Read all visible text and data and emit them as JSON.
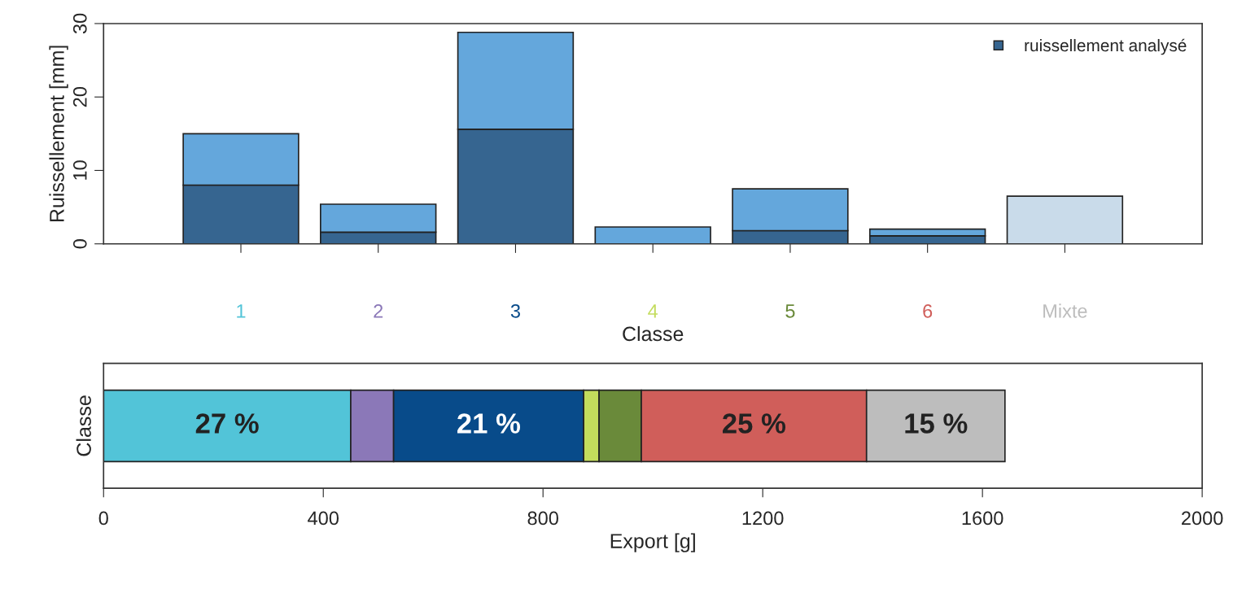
{
  "chart_data": [
    {
      "type": "bar",
      "stacked": true,
      "xlabel": "Classe",
      "ylabel": "Ruissellement [mm]",
      "categories": [
        "1",
        "2",
        "3",
        "4",
        "5",
        "6",
        "Mixte"
      ],
      "ylim": [
        0,
        30
      ],
      "yticks": [
        0,
        10,
        20,
        30
      ],
      "legend": "top right",
      "grid": false,
      "series": [
        {
          "name": "ruissellement analysé",
          "color": "#366590",
          "values": [
            8.0,
            1.6,
            15.6,
            0,
            1.8,
            1.1,
            null
          ]
        },
        {
          "color": "#64a7dc",
          "values": [
            7.0,
            3.8,
            13.2,
            2.3,
            5.7,
            0.9,
            null
          ]
        },
        {
          "color": "#c9dbea",
          "values": [
            null,
            null,
            null,
            null,
            null,
            null,
            6.5
          ]
        }
      ]
    },
    {
      "type": "bar",
      "stacked": true,
      "orientation": "horizontal",
      "xlabel": "Export [g]",
      "ylabel": "Classe",
      "categories": [
        null
      ],
      "annotations": [
        "27 %",
        "21 %",
        "25 %",
        "15 %"
      ],
      "xlim": [
        0,
        2000
      ],
      "xticks": [
        0,
        400,
        800,
        1200,
        1600,
        2000
      ],
      "legend": false,
      "grid": false,
      "series": [
        {
          "color": "#52c4d8",
          "values": [
            450
          ]
        },
        {
          "color": "#8b78b8",
          "values": [
            78
          ]
        },
        {
          "color": "#084b8a",
          "values": [
            346
          ]
        },
        {
          "color": "#c3dc5c",
          "values": [
            28
          ]
        },
        {
          "color": "#6a8a3a",
          "values": [
            77
          ]
        },
        {
          "color": "#d05e5a",
          "values": [
            410
          ]
        },
        {
          "color": "#bdbdbd",
          "values": [
            252
          ]
        }
      ]
    }
  ]
}
